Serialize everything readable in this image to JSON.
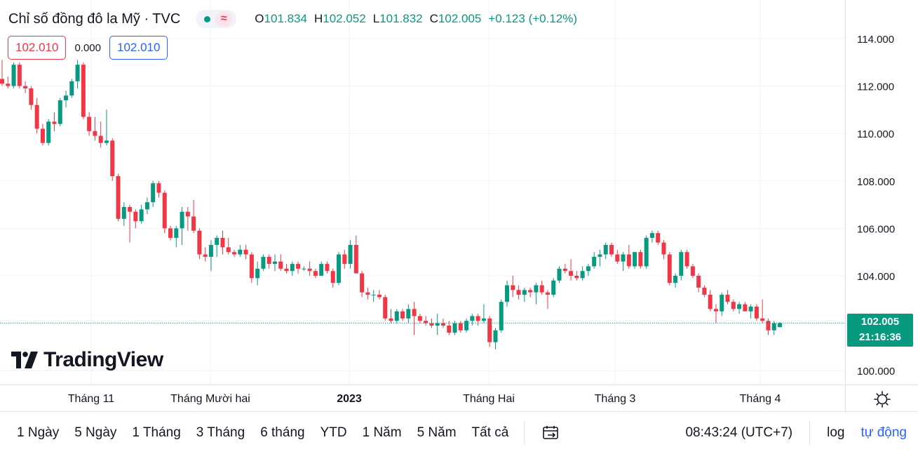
{
  "header": {
    "title": "Chỉ số đồng đô la Mỹ · TVC",
    "status_icon": "market-open-dot-icon",
    "wave_icon": "≈",
    "ohlc": {
      "o_label": "O",
      "o_value": "101.834",
      "h_label": "H",
      "h_value": "102.052",
      "l_label": "L",
      "l_value": "101.832",
      "c_label": "C",
      "c_value": "102.005",
      "change": "+0.123 (+0.12%)"
    }
  },
  "quote": {
    "sell": "102.010",
    "spread": "0.000",
    "buy": "102.010"
  },
  "logo_text": "TradingView",
  "price_tag": {
    "price": "102.005",
    "countdown": "21:16:36"
  },
  "bottom_bar": {
    "ranges": [
      "1 Ngày",
      "5 Ngày",
      "1 Tháng",
      "3 Tháng",
      "6 tháng",
      "YTD",
      "1 Năm",
      "5 Năm",
      "Tất cả"
    ],
    "date_range_icon": "calendar-goto-icon",
    "time": "08:43:24 (UTC+7)",
    "log": "log",
    "auto": "tự động"
  },
  "colors": {
    "up": "#089981",
    "down": "#f23645",
    "grid": "#f0f3fa",
    "accent": "#2962ff"
  },
  "chart_data": {
    "type": "candlestick",
    "title": "Chỉ số đồng đô la Mỹ · TVC",
    "ylim": [
      99.6,
      114.8
    ],
    "y_ticks": [
      "114.000",
      "112.000",
      "110.000",
      "108.000",
      "106.000",
      "104.000",
      "100.000"
    ],
    "x_ticks": [
      "Tháng 11",
      "Tháng Mười hai",
      "2023",
      "Tháng Hai",
      "Tháng 3",
      "Tháng 4"
    ],
    "last_price": 102.005,
    "candles": [
      [
        112.3,
        113.1,
        112.0,
        112.1
      ],
      [
        112.1,
        112.4,
        111.9,
        112.0
      ],
      [
        112.0,
        113.0,
        111.9,
        112.9
      ],
      [
        112.9,
        113.0,
        111.9,
        112.0
      ],
      [
        112.0,
        112.2,
        111.7,
        111.9
      ],
      [
        111.9,
        112.0,
        111.0,
        111.2
      ],
      [
        111.2,
        111.5,
        110.0,
        110.2
      ],
      [
        110.2,
        110.4,
        109.5,
        109.6
      ],
      [
        109.6,
        110.6,
        109.5,
        110.5
      ],
      [
        110.5,
        110.9,
        110.1,
        110.4
      ],
      [
        110.4,
        111.5,
        110.3,
        111.4
      ],
      [
        111.4,
        111.8,
        111.1,
        111.6
      ],
      [
        111.6,
        112.3,
        111.5,
        112.2
      ],
      [
        112.2,
        113.1,
        111.9,
        112.9
      ],
      [
        112.9,
        113.0,
        110.6,
        110.7
      ],
      [
        110.7,
        110.9,
        109.9,
        110.1
      ],
      [
        110.1,
        110.7,
        109.7,
        109.9
      ],
      [
        109.9,
        110.5,
        109.4,
        109.6
      ],
      [
        109.6,
        111.0,
        109.5,
        109.7
      ],
      [
        109.7,
        109.8,
        108.0,
        108.2
      ],
      [
        108.2,
        108.3,
        106.3,
        106.4
      ],
      [
        106.4,
        107.1,
        106.1,
        106.9
      ],
      [
        106.9,
        107.0,
        105.4,
        106.7
      ],
      [
        106.7,
        106.8,
        106.0,
        106.3
      ],
      [
        106.3,
        107.0,
        106.2,
        106.8
      ],
      [
        106.8,
        107.3,
        106.6,
        107.1
      ],
      [
        107.1,
        108.0,
        106.9,
        107.9
      ],
      [
        107.9,
        108.0,
        107.3,
        107.5
      ],
      [
        107.5,
        107.6,
        105.8,
        106.0
      ],
      [
        106.0,
        106.1,
        105.5,
        105.6
      ],
      [
        105.6,
        106.1,
        105.2,
        106.0
      ],
      [
        106.0,
        106.9,
        105.3,
        106.7
      ],
      [
        106.7,
        106.9,
        105.9,
        106.5
      ],
      [
        106.5,
        107.2,
        105.8,
        105.9
      ],
      [
        105.9,
        106.0,
        104.7,
        104.9
      ],
      [
        104.9,
        105.2,
        104.6,
        104.8
      ],
      [
        104.8,
        105.5,
        104.2,
        105.3
      ],
      [
        105.3,
        105.7,
        104.8,
        105.6
      ],
      [
        105.6,
        105.9,
        104.9,
        105.2
      ],
      [
        105.2,
        105.6,
        104.9,
        105.0
      ],
      [
        105.0,
        105.1,
        104.8,
        104.9
      ],
      [
        104.9,
        105.3,
        104.8,
        105.1
      ],
      [
        105.1,
        105.3,
        104.7,
        104.9
      ],
      [
        104.9,
        105.0,
        103.7,
        103.9
      ],
      [
        103.9,
        104.6,
        103.6,
        104.3
      ],
      [
        104.3,
        104.9,
        104.2,
        104.8
      ],
      [
        104.8,
        104.9,
        104.3,
        104.5
      ],
      [
        104.5,
        104.9,
        104.2,
        104.6
      ],
      [
        104.6,
        104.9,
        104.2,
        104.3
      ],
      [
        104.3,
        104.5,
        104.1,
        104.2
      ],
      [
        104.2,
        104.6,
        104.0,
        104.5
      ],
      [
        104.5,
        104.6,
        104.1,
        104.3
      ],
      [
        104.3,
        104.4,
        104.2,
        104.3
      ],
      [
        104.3,
        104.6,
        104.0,
        104.2
      ],
      [
        104.2,
        104.3,
        103.9,
        104.0
      ],
      [
        104.0,
        104.6,
        104.0,
        104.5
      ],
      [
        104.5,
        104.6,
        104.1,
        104.2
      ],
      [
        104.2,
        104.3,
        103.5,
        103.7
      ],
      [
        103.7,
        105.0,
        103.6,
        104.9
      ],
      [
        104.9,
        105.1,
        104.3,
        104.5
      ],
      [
        104.5,
        105.5,
        104.3,
        105.3
      ],
      [
        105.3,
        105.7,
        104.1,
        104.1
      ],
      [
        104.1,
        104.2,
        103.1,
        103.3
      ],
      [
        103.3,
        103.5,
        103.0,
        103.2
      ],
      [
        103.2,
        103.4,
        102.9,
        103.2
      ],
      [
        103.2,
        103.4,
        103.0,
        103.1
      ],
      [
        103.1,
        103.2,
        102.1,
        102.2
      ],
      [
        102.2,
        102.6,
        102.0,
        102.1
      ],
      [
        102.1,
        102.6,
        102.0,
        102.5
      ],
      [
        102.5,
        102.6,
        102.1,
        102.2
      ],
      [
        102.2,
        102.8,
        102.0,
        102.6
      ],
      [
        102.6,
        102.9,
        101.5,
        102.3
      ],
      [
        102.3,
        102.4,
        102.0,
        102.1
      ],
      [
        102.1,
        102.3,
        101.9,
        102.0
      ],
      [
        102.0,
        102.2,
        101.8,
        101.9
      ],
      [
        101.9,
        102.4,
        101.5,
        102.0
      ],
      [
        102.0,
        102.2,
        101.8,
        101.9
      ],
      [
        101.9,
        102.1,
        101.5,
        101.6
      ],
      [
        101.6,
        102.1,
        101.5,
        102.0
      ],
      [
        102.0,
        102.1,
        101.6,
        101.7
      ],
      [
        101.7,
        102.2,
        101.6,
        102.1
      ],
      [
        102.1,
        102.4,
        101.9,
        102.3
      ],
      [
        102.3,
        102.4,
        101.9,
        102.1
      ],
      [
        102.1,
        102.8,
        102.0,
        102.2
      ],
      [
        102.2,
        102.3,
        101.0,
        101.2
      ],
      [
        101.2,
        101.8,
        100.9,
        101.7
      ],
      [
        101.7,
        103.0,
        101.6,
        102.9
      ],
      [
        102.9,
        103.8,
        102.7,
        103.6
      ],
      [
        103.6,
        104.0,
        103.1,
        103.4
      ],
      [
        103.4,
        103.6,
        103.0,
        103.2
      ],
      [
        103.2,
        103.5,
        102.9,
        103.4
      ],
      [
        103.4,
        103.5,
        103.1,
        103.3
      ],
      [
        103.3,
        103.7,
        102.8,
        103.6
      ],
      [
        103.6,
        103.8,
        103.2,
        103.3
      ],
      [
        103.3,
        103.4,
        102.6,
        103.2
      ],
      [
        103.2,
        103.9,
        103.1,
        103.8
      ],
      [
        103.8,
        104.4,
        103.7,
        104.3
      ],
      [
        104.3,
        104.5,
        104.1,
        104.2
      ],
      [
        104.2,
        104.7,
        103.8,
        104.0
      ],
      [
        104.0,
        104.2,
        103.8,
        103.9
      ],
      [
        103.9,
        104.4,
        103.8,
        104.2
      ],
      [
        104.2,
        104.5,
        104.0,
        104.4
      ],
      [
        104.4,
        105.0,
        104.3,
        104.8
      ],
      [
        104.8,
        105.1,
        104.4,
        104.9
      ],
      [
        104.9,
        105.4,
        104.7,
        105.3
      ],
      [
        105.3,
        105.4,
        104.8,
        104.9
      ],
      [
        104.9,
        105.1,
        104.5,
        104.6
      ],
      [
        104.6,
        105.0,
        104.2,
        104.9
      ],
      [
        104.9,
        105.3,
        104.3,
        104.4
      ],
      [
        104.4,
        105.0,
        104.3,
        105.0
      ],
      [
        105.0,
        105.1,
        104.3,
        104.4
      ],
      [
        104.4,
        105.7,
        104.3,
        105.6
      ],
      [
        105.6,
        105.9,
        105.4,
        105.8
      ],
      [
        105.8,
        105.9,
        105.3,
        105.4
      ],
      [
        105.4,
        105.5,
        104.7,
        104.9
      ],
      [
        104.9,
        105.0,
        103.6,
        103.7
      ],
      [
        103.7,
        104.1,
        103.5,
        104.0
      ],
      [
        104.0,
        105.1,
        103.8,
        105.0
      ],
      [
        105.0,
        105.1,
        104.3,
        104.4
      ],
      [
        104.4,
        104.5,
        103.9,
        104.0
      ],
      [
        104.0,
        104.1,
        103.3,
        103.5
      ],
      [
        103.5,
        103.6,
        103.1,
        103.2
      ],
      [
        103.2,
        103.4,
        102.5,
        102.6
      ],
      [
        102.6,
        102.8,
        102.0,
        102.5
      ],
      [
        102.5,
        103.3,
        102.3,
        103.2
      ],
      [
        103.2,
        103.4,
        102.8,
        102.9
      ],
      [
        102.9,
        103.0,
        102.5,
        102.6
      ],
      [
        102.6,
        102.9,
        102.4,
        102.8
      ],
      [
        102.8,
        102.9,
        102.5,
        102.5
      ],
      [
        102.5,
        102.8,
        102.2,
        102.7
      ],
      [
        102.7,
        102.8,
        102.1,
        102.2
      ],
      [
        102.2,
        103.0,
        102.0,
        102.1
      ],
      [
        102.1,
        102.2,
        101.5,
        101.7
      ],
      [
        101.7,
        102.1,
        101.5,
        102.0
      ],
      [
        101.834,
        102.052,
        101.832,
        102.005
      ]
    ]
  }
}
